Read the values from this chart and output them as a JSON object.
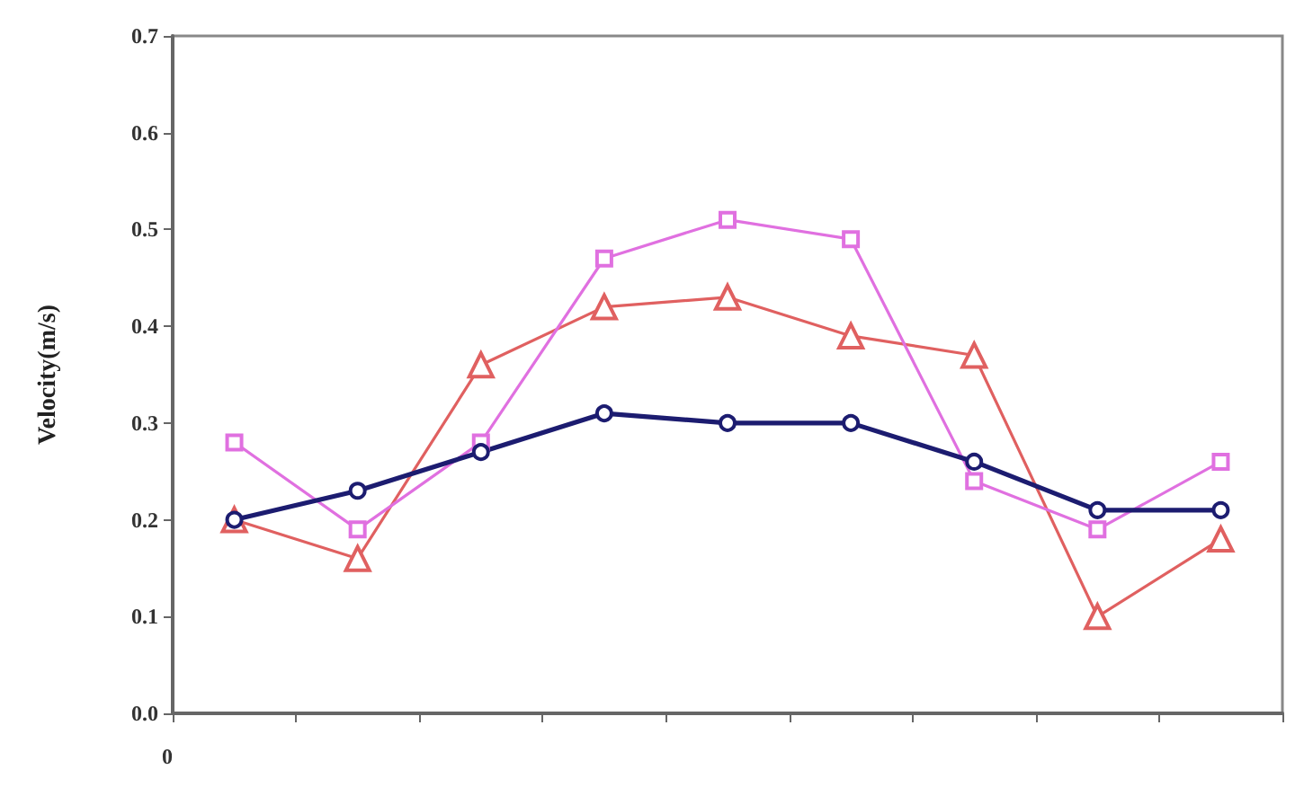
{
  "chart_data": {
    "type": "line",
    "ylabel": "Velocity(m/s)",
    "annotations": [
      "0"
    ],
    "categories": [
      null,
      null,
      null,
      null,
      null,
      null,
      null,
      null,
      null
    ],
    "ylim": [
      0,
      0.7
    ],
    "yticks": [
      {
        "value": 0,
        "label": "0.0"
      },
      {
        "value": 0.1,
        "label": "0.1"
      },
      {
        "value": 0.2,
        "label": "0.2"
      },
      {
        "value": 0.3,
        "label": "0.3"
      },
      {
        "value": 0.4,
        "label": "0.4"
      },
      {
        "value": 0.5,
        "label": "0.5"
      },
      {
        "value": 0.6,
        "label": "0.6"
      },
      {
        "value": 0.7,
        "label": "0.7"
      }
    ],
    "grid": false,
    "line_style": "solid",
    "series": [
      {
        "color": "#e06060",
        "marker": "triangle",
        "values": [
          0.2,
          0.16,
          0.36,
          0.42,
          0.43,
          0.39,
          0.37,
          0.1,
          0.18
        ]
      },
      {
        "color": "#e070e0",
        "marker": "square",
        "values": [
          0.28,
          0.19,
          0.28,
          0.47,
          0.51,
          0.49,
          0.24,
          0.19,
          0.26
        ]
      },
      {
        "color": "#1c1c70",
        "marker": "circle",
        "values": [
          0.2,
          0.23,
          0.27,
          0.31,
          0.3,
          0.3,
          0.26,
          0.21,
          0.21
        ]
      }
    ]
  }
}
